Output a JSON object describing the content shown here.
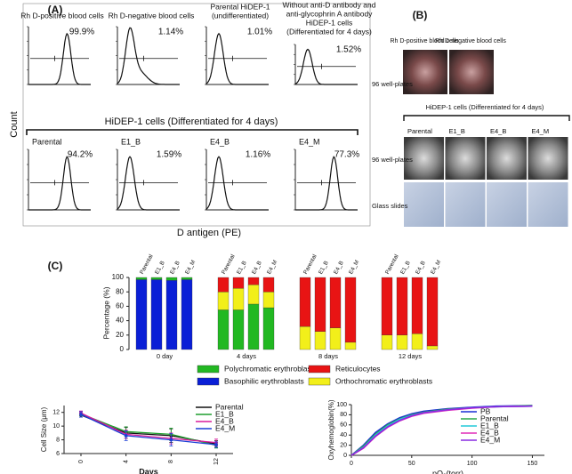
{
  "panel_a": {
    "label": "(A)",
    "y_label": "Count",
    "x_label": "D antigen (PE)",
    "group_title": "HiDEP-1 cells (Differentiated for 4 days)",
    "top": [
      {
        "title": [
          "Rh D-positive blood cells"
        ],
        "percent": "99.9%"
      },
      {
        "title": [
          "Rh D-negative blood cells"
        ],
        "percent": "1.14%"
      },
      {
        "title": [
          "Parental HiDEP-1",
          "(undifferentiated)"
        ],
        "percent": "1.01%"
      },
      {
        "title": [
          "Without anti-D antibody and",
          "anti-glycophrin A antibody",
          "HiDEP-1 cells",
          "(Differentiated for 4 days)"
        ],
        "percent": "1.52%"
      }
    ],
    "bottom": [
      {
        "title": "Parental",
        "percent": "94.2%"
      },
      {
        "title": "E1_B",
        "percent": "1.59%"
      },
      {
        "title": "E4_B",
        "percent": "1.16%"
      },
      {
        "title": "E4_M",
        "percent": "77.3%"
      }
    ]
  },
  "panel_b": {
    "label": "(B)",
    "top_columns": [
      "Rh D-positive blood cells",
      "Rh D-negative blood cells"
    ],
    "row_plate": "96 well-plates",
    "group_title": "HiDEP-1 cells (Differentiated for 4 days)",
    "columns": [
      "Parental",
      "E1_B",
      "E4_B",
      "E4_M"
    ],
    "rows": [
      "96 well-plates",
      "Glass slides"
    ]
  },
  "panel_c_label": "(C)",
  "chart_data": [
    {
      "type": "bar",
      "stacked": true,
      "y_label": "Percentage (%)",
      "groups": [
        "0 day",
        "4 days",
        "8 days",
        "12 days"
      ],
      "categories": [
        "Parental",
        "E1_B",
        "E4_B",
        "E4_M",
        "Parental",
        "E1_B",
        "E4_B",
        "E4_M",
        "Parental",
        "E1_B",
        "E4_B",
        "E4_M",
        "Parental",
        "E1_B",
        "E4_B",
        "E4_M"
      ],
      "ylim": [
        0,
        100
      ],
      "yticks": [
        0,
        20,
        40,
        60,
        80,
        100
      ],
      "series": [
        {
          "name": "Basophilic erythroblasts",
          "color": "#0a1fd6",
          "values": [
            97,
            97,
            96,
            97,
            0,
            0,
            0,
            0,
            0,
            0,
            0,
            0,
            0,
            0,
            0,
            0
          ]
        },
        {
          "name": "Polychromatic erythroblasts",
          "color": "#22b822",
          "values": [
            3,
            3,
            4,
            3,
            55,
            55,
            63,
            58,
            0,
            0,
            0,
            0,
            0,
            0,
            0,
            0
          ]
        },
        {
          "name": "Orthochromatic erythroblasts",
          "color": "#f2ef1a",
          "values": [
            0,
            0,
            0,
            0,
            25,
            30,
            27,
            22,
            32,
            25,
            30,
            10,
            20,
            20,
            22,
            5
          ]
        },
        {
          "name": "Reticulocytes",
          "color": "#e81414",
          "values": [
            0,
            0,
            0,
            0,
            20,
            15,
            10,
            20,
            68,
            75,
            70,
            90,
            80,
            80,
            78,
            95
          ]
        }
      ]
    },
    {
      "type": "line",
      "y_label": "Cell Size (μm)",
      "x_label": "Days",
      "x": [
        0,
        4,
        8,
        12
      ],
      "xlim": [
        -1.5,
        13.5
      ],
      "xticks": [
        0,
        4,
        8,
        12
      ],
      "ylim": [
        6,
        13
      ],
      "yticks": [
        6,
        8,
        10,
        12
      ],
      "series": [
        {
          "name": "Parental",
          "color": "#111111",
          "values": [
            11.6,
            9.0,
            8.6,
            7.4
          ],
          "errors": [
            0.3,
            0.8,
            1.0,
            0.5
          ]
        },
        {
          "name": "E1_B",
          "color": "#1f9e2e",
          "values": [
            11.8,
            9.2,
            8.8,
            7.2
          ],
          "errors": [
            0.3,
            0.7,
            0.9,
            0.4
          ]
        },
        {
          "name": "E4_B",
          "color": "#d81b9c",
          "values": [
            11.9,
            8.8,
            8.2,
            7.6
          ],
          "errors": [
            0.3,
            0.6,
            0.8,
            0.5
          ]
        },
        {
          "name": "E4_M",
          "color": "#1a3fd6",
          "values": [
            11.7,
            8.6,
            8.0,
            7.3
          ],
          "errors": [
            0.4,
            0.7,
            0.9,
            0.4
          ]
        }
      ]
    },
    {
      "type": "line",
      "y_label": "Oxyhemoglobin(%)",
      "x_label": "pO₂(torr)",
      "x": [
        0,
        10,
        20,
        30,
        40,
        50,
        60,
        80,
        100,
        120,
        150
      ],
      "xlim": [
        0,
        160
      ],
      "xticks": [
        0,
        50,
        100,
        150
      ],
      "ylim": [
        0,
        100
      ],
      "yticks": [
        0,
        20,
        40,
        60,
        80,
        100
      ],
      "series": [
        {
          "name": "PB",
          "color": "#1a2fd6",
          "values": [
            0,
            20,
            45,
            62,
            74,
            82,
            87,
            92,
            95,
            97,
            98
          ]
        },
        {
          "name": "Parental",
          "color": "#2aa84a",
          "values": [
            0,
            18,
            42,
            60,
            72,
            80,
            85,
            91,
            94,
            96,
            98
          ]
        },
        {
          "name": "E1_B",
          "color": "#22c8d8",
          "values": [
            0,
            16,
            40,
            58,
            71,
            79,
            84,
            90,
            94,
            96,
            97
          ]
        },
        {
          "name": "E4_B",
          "color": "#e02bb8",
          "values": [
            0,
            14,
            37,
            55,
            68,
            77,
            83,
            89,
            93,
            96,
            97
          ]
        },
        {
          "name": "E4_M",
          "color": "#8a2be2",
          "values": [
            0,
            15,
            38,
            56,
            69,
            78,
            84,
            90,
            94,
            96,
            97
          ]
        }
      ]
    }
  ]
}
